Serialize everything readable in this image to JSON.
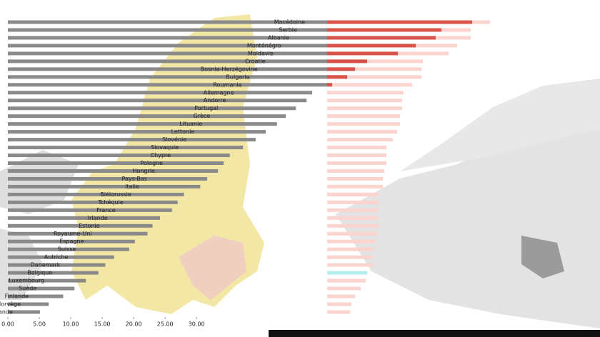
{
  "chart_data": {
    "type": "bar",
    "categories": [
      "Macédoine",
      "Serbie",
      "Albanie",
      "Monténégro",
      "Moldavie",
      "Croatie",
      "Bosnie-Herzégovine",
      "Bulgarie",
      "Roumanie",
      "Allemagne",
      "Andorre",
      "Portugal",
      "Grèce",
      "Lituanie",
      "Lettonie",
      "Slovénie",
      "Slovaquie",
      "Chypre",
      "Pologne",
      "Hongrie",
      "Pays-Bas",
      "Italie",
      "Biélorussie",
      "Tchéquie",
      "France",
      "Irlande",
      "Estonie",
      "Royaume-Uni",
      "Espagne",
      "Suisse",
      "Autriche",
      "Danemark",
      "Belgique",
      "Luxembourg",
      "Suède",
      "Finlande",
      "Norvège",
      "Islande"
    ],
    "series": [
      {
        "color": "#8a8a8a",
        "values": [
          51,
          51,
          51,
          51,
          51,
          51,
          51,
          51,
          51,
          48.4,
          47.5,
          45.8,
          44.2,
          42.8,
          41,
          39.4,
          37.4,
          35.3,
          34.3,
          33.4,
          31.7,
          30.6,
          28,
          27,
          26.1,
          24.2,
          23,
          22.2,
          20.2,
          19.3,
          16.9,
          15.5,
          14.4,
          12.4,
          10.6,
          8.8,
          6.5,
          5.1
        ]
      },
      {
        "axis": "x2",
        "color": "#fbd3cf",
        "values": [
          228,
          201,
          201,
          182,
          170,
          134,
          132,
          132,
          119,
          107,
          105,
          105,
          102,
          102,
          98,
          92,
          83,
          83,
          83,
          80,
          78,
          78,
          72,
          72,
          72,
          72,
          72,
          69,
          67,
          65,
          65,
          65,
          56,
          54,
          47,
          39,
          34,
          32
        ]
      },
      {
        "axis": "x2",
        "color": "#d9534a",
        "values": [
          203,
          160,
          152,
          124,
          99,
          56,
          39,
          28,
          7,
          0,
          0,
          0,
          0,
          0,
          0,
          0,
          0,
          0,
          0,
          0,
          0,
          0,
          0,
          0,
          0,
          0,
          0,
          0,
          0,
          0,
          0,
          0,
          0,
          0,
          0,
          0,
          0,
          0
        ]
      }
    ],
    "highlight": {
      "index": 32,
      "color": "#b5ecf2"
    },
    "xlim": [
      0,
      51
    ],
    "x2lim": [
      0,
      240
    ],
    "xticks": [
      {
        "value": 0,
        "label": "0.00"
      },
      {
        "value": 5,
        "label": "5.00"
      },
      {
        "value": 10,
        "label": "10.00"
      },
      {
        "value": 15,
        "label": "15.00"
      },
      {
        "value": 20,
        "label": "20.00"
      },
      {
        "value": 25,
        "label": "25.00"
      },
      {
        "value": 30,
        "label": "30.00"
      }
    ]
  }
}
